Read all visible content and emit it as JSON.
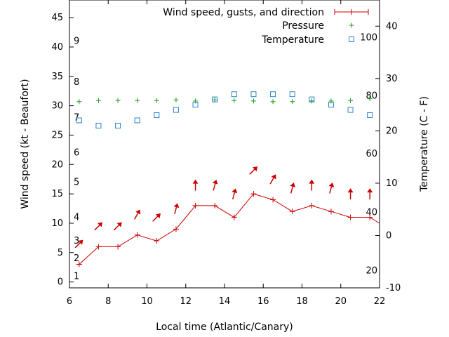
{
  "chart_data": {
    "type": "line",
    "xlabel": "Local time (Atlantic/Canary)",
    "ylabel": "Wind speed (kt - Beaufort)",
    "y2label": "Temperature (C - F)",
    "xlim": [
      6,
      22
    ],
    "ylim": [
      -1,
      48
    ],
    "y2lim": [
      -10,
      45
    ],
    "x_ticks": [
      6,
      8,
      10,
      12,
      14,
      16,
      18,
      20,
      22
    ],
    "y_ticks": [
      0,
      5,
      10,
      15,
      20,
      25,
      30,
      35,
      40,
      45
    ],
    "y2_ticks": [
      -10,
      0,
      10,
      20,
      30,
      40
    ],
    "beaufort_labels": [
      {
        "label": "1",
        "kt": 1
      },
      {
        "label": "2",
        "kt": 4
      },
      {
        "label": "3",
        "kt": 7
      },
      {
        "label": "4",
        "kt": 11
      },
      {
        "label": "5",
        "kt": 17
      },
      {
        "label": "6",
        "kt": 22
      },
      {
        "label": "7",
        "kt": 28
      },
      {
        "label": "8",
        "kt": 34
      },
      {
        "label": "9",
        "kt": 41
      }
    ],
    "fahrenheit_labels": [
      {
        "label": "20",
        "c": -6.7
      },
      {
        "label": "40",
        "c": 4.4
      },
      {
        "label": "60",
        "c": 15.6
      },
      {
        "label": "80",
        "c": 26.7
      },
      {
        "label": "100",
        "c": 37.8
      }
    ],
    "legend": {
      "wind": "Wind speed, gusts, and direction",
      "pressure": "Pressure",
      "temperature": "Temperature"
    },
    "colors": {
      "wind": "#cc0000",
      "pressure": "#1a9a1a",
      "temperature": "#2a82d0"
    },
    "series": [
      {
        "name": "Wind speed, gusts, and direction",
        "x": [
          6.5,
          7.5,
          8.5,
          9.5,
          10.5,
          11.5,
          12.5,
          13.5,
          14.5,
          15.5,
          16.5,
          17.5,
          18.5,
          19.5,
          20.5,
          21.5,
          22
        ],
        "y": [
          3,
          6,
          6,
          8,
          7,
          9,
          13,
          13,
          11,
          15,
          14,
          12,
          13,
          12,
          11,
          11,
          10
        ]
      },
      {
        "name": "Wind direction arrows",
        "points": [
          {
            "x": 6.5,
            "y": 6.5,
            "dir": 225
          },
          {
            "x": 7.5,
            "y": 9.5,
            "dir": 225
          },
          {
            "x": 8.5,
            "y": 9.5,
            "dir": 225
          },
          {
            "x": 9.5,
            "y": 11.5,
            "dir": 210
          },
          {
            "x": 10.5,
            "y": 11,
            "dir": 225
          },
          {
            "x": 11.5,
            "y": 12.5,
            "dir": 195
          },
          {
            "x": 12.5,
            "y": 16.5,
            "dir": 180
          },
          {
            "x": 13.5,
            "y": 16.5,
            "dir": 195
          },
          {
            "x": 14.5,
            "y": 15,
            "dir": 195
          },
          {
            "x": 15.5,
            "y": 19,
            "dir": 225
          },
          {
            "x": 16.5,
            "y": 17.5,
            "dir": 210
          },
          {
            "x": 17.5,
            "y": 16,
            "dir": 195
          },
          {
            "x": 18.5,
            "y": 16.5,
            "dir": 180
          },
          {
            "x": 19.5,
            "y": 16,
            "dir": 195
          },
          {
            "x": 20.5,
            "y": 15,
            "dir": 180
          },
          {
            "x": 21.5,
            "y": 15,
            "dir": 180
          }
        ]
      },
      {
        "name": "Pressure",
        "x": [
          6.5,
          7.5,
          8.5,
          9.5,
          10.5,
          11.5,
          12.5,
          13.5,
          14.5,
          15.5,
          16.5,
          17.5,
          18.5,
          19.5,
          20.5,
          21.5
        ],
        "y": [
          30.7,
          30.9,
          30.9,
          30.9,
          30.9,
          31.0,
          30.8,
          31.0,
          30.9,
          30.8,
          30.7,
          30.7,
          30.8,
          30.8,
          30.9,
          31.2
        ]
      },
      {
        "name": "Temperature",
        "x": [
          6.5,
          7.5,
          8.5,
          9.5,
          10.5,
          11.5,
          12.5,
          13.5,
          14.5,
          15.5,
          16.5,
          17.5,
          18.5,
          19.5,
          20.5,
          21.5
        ],
        "y": [
          22,
          21,
          21,
          22,
          23,
          24,
          25,
          26,
          27,
          27,
          27,
          27,
          26,
          25,
          24,
          23
        ]
      }
    ]
  }
}
